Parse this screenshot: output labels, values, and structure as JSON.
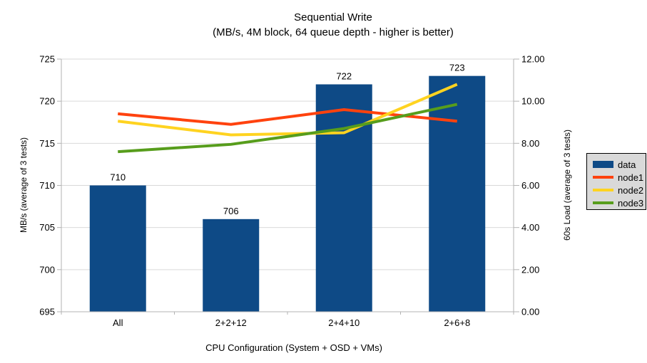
{
  "title": {
    "line1": "Sequential Write",
    "line2": "(MB/s, 4M block, 64 queue depth - higher is better)"
  },
  "chart_data": {
    "type": "bar",
    "subtype": "combo-bar-line-dual-axis",
    "categories": [
      "All",
      "2+2+12",
      "2+4+10",
      "2+6+8"
    ],
    "bar_series": {
      "name": "data",
      "axis": "left",
      "values": [
        710,
        706,
        722,
        723
      ],
      "data_labels": [
        "710",
        "706",
        "722",
        "723"
      ],
      "color": "#0e4a86"
    },
    "line_series": [
      {
        "name": "node1",
        "axis": "right",
        "values": [
          9.4,
          8.9,
          9.6,
          9.05
        ],
        "color": "#ff420e"
      },
      {
        "name": "node2",
        "axis": "right",
        "values": [
          9.05,
          8.4,
          8.5,
          10.8
        ],
        "color": "#ffd320"
      },
      {
        "name": "node3",
        "axis": "right",
        "values": [
          7.6,
          7.95,
          8.7,
          9.85
        ],
        "color": "#579d1c"
      }
    ],
    "left_axis": {
      "title": "MB/s (average of 3 tests)",
      "min": 695,
      "max": 725,
      "step": 5,
      "tick_labels": [
        "695",
        "700",
        "705",
        "710",
        "715",
        "720",
        "725"
      ]
    },
    "right_axis": {
      "title": "60s Load (average of 3 tests)",
      "min": 0,
      "max": 12,
      "step": 2,
      "tick_labels": [
        "0.00",
        "2.00",
        "4.00",
        "6.00",
        "8.00",
        "10.00",
        "12.00"
      ]
    },
    "x_axis": {
      "title": "CPU Configuration (System + OSD + VMs)"
    },
    "grid": "horizontal-on",
    "legend_position": "right"
  },
  "legend": {
    "items": [
      {
        "label": "data",
        "color": "#0e4a86",
        "swatch": "bar"
      },
      {
        "label": "node1",
        "color": "#ff420e",
        "swatch": "line"
      },
      {
        "label": "node2",
        "color": "#ffd320",
        "swatch": "line"
      },
      {
        "label": "node3",
        "color": "#579d1c",
        "swatch": "line"
      }
    ],
    "background": "#d9d9d9",
    "border_color": "#000000"
  },
  "colors": {
    "gridline": "#d9d9d9",
    "axis_line": "#b3b3b3",
    "text": "#000000",
    "background": "#ffffff"
  }
}
